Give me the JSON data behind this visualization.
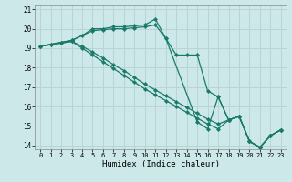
{
  "xlabel": "Humidex (Indice chaleur)",
  "background_color": "#cce8e8",
  "grid_color": "#b8d4d4",
  "line_color": "#1a7a6a",
  "xlim": [
    -0.5,
    23.5
  ],
  "ylim": [
    13.8,
    21.2
  ],
  "xticks": [
    0,
    1,
    2,
    3,
    4,
    5,
    6,
    7,
    8,
    9,
    10,
    11,
    12,
    13,
    14,
    15,
    16,
    17,
    18,
    19,
    20,
    21,
    22,
    23
  ],
  "yticks": [
    14,
    15,
    16,
    17,
    18,
    19,
    20,
    21
  ],
  "line1_x": [
    0,
    1,
    2,
    3,
    4,
    5,
    6,
    7,
    8,
    9,
    10,
    11,
    12,
    13,
    14,
    15,
    16,
    17,
    18,
    19,
    20,
    21,
    22,
    23
  ],
  "line1_y": [
    19.1,
    19.2,
    19.3,
    19.4,
    19.65,
    20.0,
    20.0,
    20.1,
    20.1,
    20.15,
    20.2,
    20.5,
    19.5,
    18.65,
    18.65,
    18.65,
    16.8,
    16.5,
    15.3,
    15.5,
    14.2,
    13.9,
    14.5,
    14.8
  ],
  "line2_x": [
    0,
    1,
    2,
    3,
    5,
    6,
    7,
    8,
    9,
    10,
    11,
    12,
    15,
    16,
    17,
    18,
    19,
    20,
    21,
    22,
    23
  ],
  "line2_y": [
    19.1,
    19.2,
    19.3,
    19.4,
    19.9,
    19.95,
    20.0,
    20.0,
    20.05,
    20.1,
    20.2,
    19.5,
    15.2,
    14.85,
    16.5,
    15.3,
    15.5,
    14.2,
    13.9,
    14.5,
    14.8
  ],
  "line3_x": [
    0,
    3,
    4,
    5,
    6,
    7,
    8,
    9,
    10,
    11,
    12,
    13,
    14,
    15,
    16,
    17,
    18,
    19,
    20,
    21,
    22,
    23
  ],
  "line3_y": [
    19.1,
    19.35,
    19.1,
    18.8,
    18.5,
    18.15,
    17.85,
    17.5,
    17.15,
    16.85,
    16.55,
    16.25,
    15.95,
    15.65,
    15.35,
    15.1,
    15.3,
    15.5,
    14.2,
    13.9,
    14.5,
    14.8
  ],
  "line4_x": [
    0,
    3,
    4,
    5,
    6,
    7,
    8,
    9,
    10,
    11,
    12,
    13,
    14,
    15,
    16,
    17,
    18,
    19,
    20,
    21,
    22,
    23
  ],
  "line4_y": [
    19.1,
    19.35,
    19.0,
    18.65,
    18.3,
    17.95,
    17.6,
    17.25,
    16.9,
    16.6,
    16.3,
    16.0,
    15.7,
    15.4,
    15.1,
    14.85,
    15.3,
    15.5,
    14.2,
    13.9,
    14.5,
    14.8
  ]
}
